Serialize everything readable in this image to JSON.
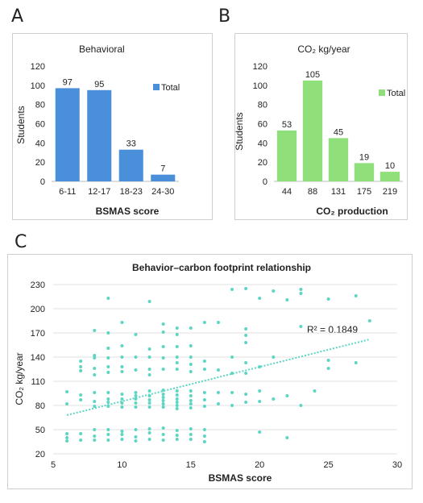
{
  "panels": {
    "a": {
      "letter": "A"
    },
    "b": {
      "letter": "B"
    },
    "c": {
      "letter": "C"
    }
  },
  "legend_label": "Total",
  "colors": {
    "blue_bar": "#4a8fd9",
    "green_bar": "#8fe07a",
    "scatter": "#5cd6c2",
    "trend": "#5cd6c2"
  },
  "chart_data": [
    {
      "type": "bar",
      "title": "Behavioral",
      "categories": [
        "6-11",
        "12-17",
        "18-23",
        "24-30"
      ],
      "series": [
        {
          "name": "Total",
          "values": [
            97,
            95,
            33,
            7
          ]
        }
      ],
      "xlabel": "BSMAS score",
      "ylabel": "Students",
      "ylim": [
        0,
        120
      ],
      "yticks": [
        0,
        20,
        40,
        60,
        80,
        100,
        120
      ],
      "legend": "right"
    },
    {
      "type": "bar",
      "title": "CO₂  kg/year",
      "categories": [
        "44",
        "88",
        "131",
        "175",
        "219"
      ],
      "series": [
        {
          "name": "Total",
          "values": [
            53,
            105,
            45,
            19,
            10
          ]
        }
      ],
      "xlabel": "CO₂ production",
      "ylabel": "Students",
      "ylim": [
        0,
        120
      ],
      "yticks": [
        0,
        20,
        40,
        60,
        80,
        100,
        120
      ],
      "legend": "right"
    },
    {
      "type": "scatter",
      "title": "Behavior–carbon footprint relationship",
      "xlabel": "BSMAS score",
      "ylabel": "CO₂  kg/year",
      "xlim": [
        5,
        30
      ],
      "ylim": [
        20,
        230
      ],
      "xticks": [
        5,
        10,
        15,
        20,
        25,
        30
      ],
      "yticks": [
        20,
        50,
        80,
        110,
        140,
        170,
        200,
        230
      ],
      "annotation": "R² = 0.1849",
      "trendline": {
        "x": [
          6,
          28
        ],
        "y": [
          68,
          162
        ]
      },
      "points": [
        [
          6,
          45
        ],
        [
          6,
          40
        ],
        [
          6,
          36
        ],
        [
          6,
          82
        ],
        [
          6,
          97
        ],
        [
          7,
          37
        ],
        [
          7,
          45
        ],
        [
          7,
          87
        ],
        [
          7,
          93
        ],
        [
          7,
          123
        ],
        [
          7,
          128
        ],
        [
          7,
          135
        ],
        [
          8,
          37
        ],
        [
          8,
          42
        ],
        [
          8,
          50
        ],
        [
          8,
          79
        ],
        [
          8,
          85
        ],
        [
          8,
          96
        ],
        [
          8,
          118
        ],
        [
          8,
          126
        ],
        [
          8,
          139
        ],
        [
          8,
          142
        ],
        [
          8,
          173
        ],
        [
          9,
          37
        ],
        [
          9,
          44
        ],
        [
          9,
          50
        ],
        [
          9,
          79
        ],
        [
          9,
          84
        ],
        [
          9,
          88
        ],
        [
          9,
          96
        ],
        [
          9,
          121
        ],
        [
          9,
          128
        ],
        [
          9,
          139
        ],
        [
          9,
          151
        ],
        [
          9,
          170
        ],
        [
          9,
          213
        ],
        [
          10,
          38
        ],
        [
          10,
          44
        ],
        [
          10,
          48
        ],
        [
          10,
          78
        ],
        [
          10,
          83
        ],
        [
          10,
          88
        ],
        [
          10,
          94
        ],
        [
          10,
          122
        ],
        [
          10,
          128
        ],
        [
          10,
          140
        ],
        [
          10,
          154
        ],
        [
          10,
          183
        ],
        [
          11,
          36
        ],
        [
          11,
          41
        ],
        [
          11,
          50
        ],
        [
          11,
          78
        ],
        [
          11,
          83
        ],
        [
          11,
          88
        ],
        [
          11,
          92
        ],
        [
          11,
          96
        ],
        [
          11,
          124
        ],
        [
          11,
          140
        ],
        [
          11,
          168
        ],
        [
          12,
          38
        ],
        [
          12,
          46
        ],
        [
          12,
          51
        ],
        [
          12,
          78
        ],
        [
          12,
          83
        ],
        [
          12,
          87
        ],
        [
          12,
          92
        ],
        [
          12,
          98
        ],
        [
          12,
          118
        ],
        [
          12,
          125
        ],
        [
          12,
          140
        ],
        [
          12,
          150
        ],
        [
          12,
          209
        ],
        [
          13,
          37
        ],
        [
          13,
          44
        ],
        [
          13,
          52
        ],
        [
          13,
          78
        ],
        [
          13,
          82
        ],
        [
          13,
          86
        ],
        [
          13,
          90
        ],
        [
          13,
          94
        ],
        [
          13,
          99
        ],
        [
          13,
          125
        ],
        [
          13,
          139
        ],
        [
          13,
          153
        ],
        [
          13,
          171
        ],
        [
          13,
          181
        ],
        [
          14,
          38
        ],
        [
          14,
          43
        ],
        [
          14,
          49
        ],
        [
          14,
          76
        ],
        [
          14,
          80
        ],
        [
          14,
          84
        ],
        [
          14,
          88
        ],
        [
          14,
          93
        ],
        [
          14,
          98
        ],
        [
          14,
          125
        ],
        [
          14,
          133
        ],
        [
          14,
          140
        ],
        [
          14,
          153
        ],
        [
          14,
          168
        ],
        [
          14,
          176
        ],
        [
          15,
          38
        ],
        [
          15,
          44
        ],
        [
          15,
          51
        ],
        [
          15,
          77
        ],
        [
          15,
          82
        ],
        [
          15,
          86
        ],
        [
          15,
          92
        ],
        [
          15,
          98
        ],
        [
          15,
          122
        ],
        [
          15,
          131
        ],
        [
          15,
          140
        ],
        [
          15,
          154
        ],
        [
          15,
          176
        ],
        [
          16,
          35
        ],
        [
          16,
          42
        ],
        [
          16,
          50
        ],
        [
          16,
          79
        ],
        [
          16,
          87
        ],
        [
          16,
          96
        ],
        [
          16,
          125
        ],
        [
          16,
          135
        ],
        [
          16,
          183
        ],
        [
          17,
          82
        ],
        [
          17,
          96
        ],
        [
          17,
          124
        ],
        [
          17,
          183
        ],
        [
          18,
          80
        ],
        [
          18,
          96
        ],
        [
          18,
          120
        ],
        [
          18,
          140
        ],
        [
          18,
          224
        ],
        [
          19,
          84
        ],
        [
          19,
          94
        ],
        [
          19,
          120
        ],
        [
          19,
          133
        ],
        [
          19,
          158
        ],
        [
          19,
          167
        ],
        [
          19,
          175
        ],
        [
          19,
          225
        ],
        [
          20,
          47
        ],
        [
          20,
          85
        ],
        [
          20,
          98
        ],
        [
          20,
          128
        ],
        [
          20,
          213
        ],
        [
          21,
          88
        ],
        [
          21,
          140
        ],
        [
          21,
          222
        ],
        [
          22,
          40
        ],
        [
          22,
          92
        ],
        [
          22,
          211
        ],
        [
          23,
          80
        ],
        [
          23,
          178
        ],
        [
          23,
          219
        ],
        [
          23,
          224
        ],
        [
          24,
          98
        ],
        [
          25,
          126
        ],
        [
          25,
          136
        ],
        [
          25,
          212
        ],
        [
          27,
          133
        ],
        [
          27,
          216
        ],
        [
          28,
          185
        ]
      ]
    }
  ]
}
